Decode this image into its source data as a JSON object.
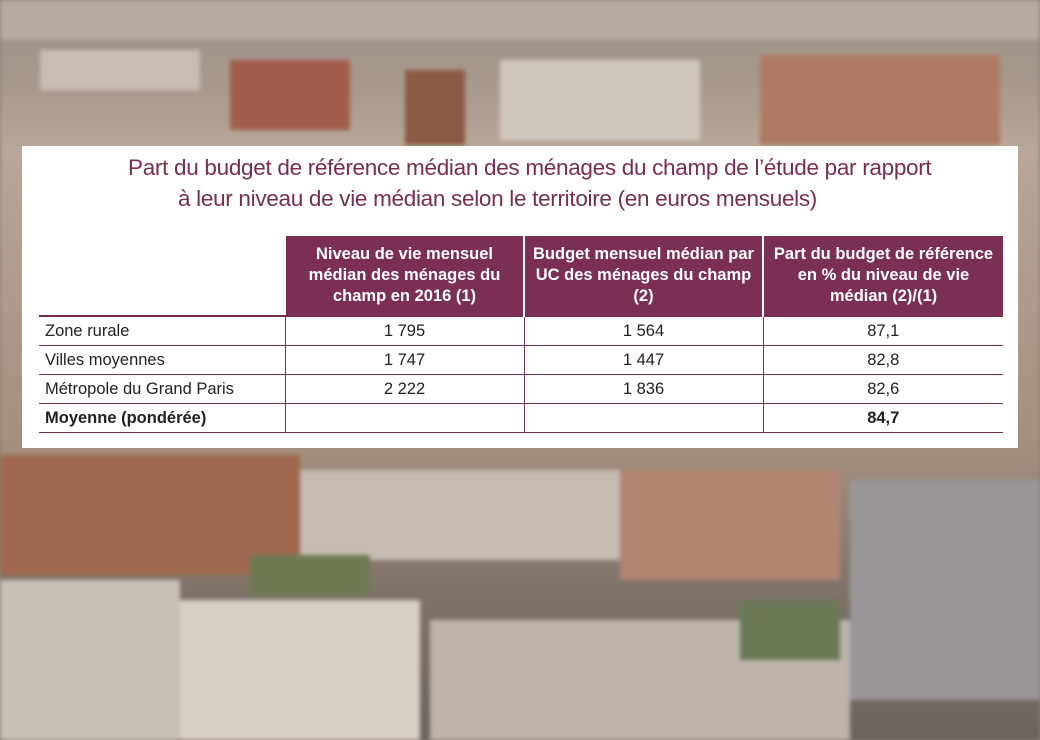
{
  "title": {
    "line1": "Part du budget de référence médian des ménages du champ de l’étude par rapport",
    "line2": "à leur niveau de vie médian selon le territoire (en euros mensuels)"
  },
  "table": {
    "headers": [
      "",
      "Niveau de vie mensuel médian des ménages du champ en 2016 (1)",
      "Budget mensuel médian par UC des ménages du champ (2)",
      "Part du budget de référence en % du niveau de vie médian (2)/(1)"
    ],
    "rows": [
      [
        "Zone rurale",
        "1 795",
        "1 564",
        "87,1"
      ],
      [
        "Villes moyennes",
        "1 747",
        "1 447",
        "82,8"
      ],
      [
        "Métropole du Grand Paris",
        "2 222",
        "1 836",
        "82,6"
      ],
      [
        "Moyenne (pondérée)",
        "",
        "",
        "84,7"
      ]
    ]
  },
  "colors": {
    "accent": "#7b2f55",
    "title": "#7a2d52"
  }
}
